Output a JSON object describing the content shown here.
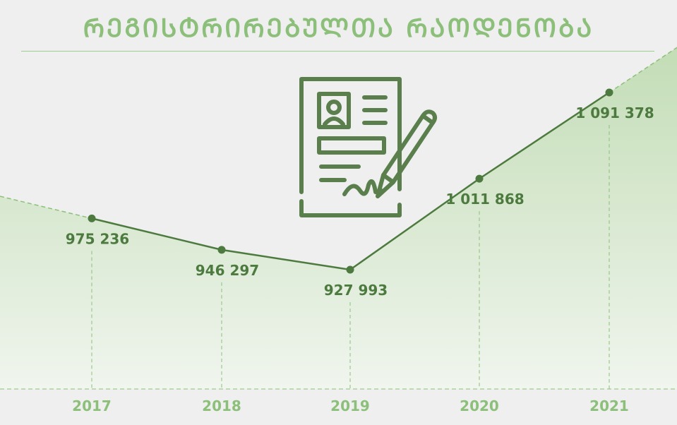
{
  "title": "ᲠᲔᲒᲘᲡᲢᲠᲘᲠᲔᲑᲣᲚᲗᲐ ᲠᲐᲝᲓᲔᲜᲝᲑᲐ",
  "colors": {
    "title": "#8cc07a",
    "line": "#4d7a3f",
    "area_top": "#c3ddb6",
    "area_bottom": "#f0f5ee",
    "dashed": "#8cc07a",
    "value_label": "#4d7a3f",
    "year_label": "#8cc07a",
    "icon": "#5a7f4d"
  },
  "icon": "document-signature-icon",
  "chart_data": {
    "type": "line",
    "categories": [
      "2017",
      "2018",
      "2019",
      "2020",
      "2021"
    ],
    "values": [
      975236,
      946297,
      927993,
      1011868,
      1091378
    ],
    "value_labels": [
      "975 236",
      "946 297",
      "927 993",
      "1 011 868",
      "1 091 378"
    ],
    "xlabel": "",
    "ylabel": "",
    "area_fill": true,
    "grid": false,
    "legend": "none"
  }
}
